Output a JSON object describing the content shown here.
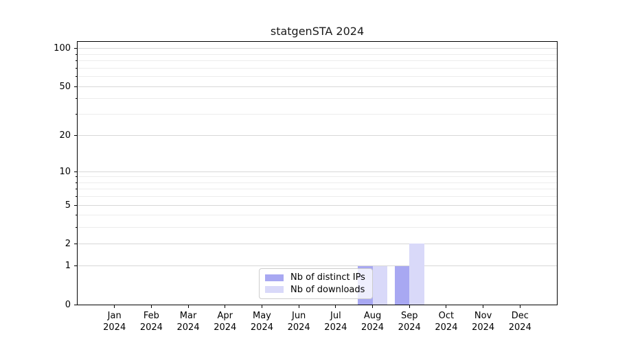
{
  "title": "statgenSTA 2024",
  "chart_data": {
    "type": "bar",
    "title": "statgenSTA 2024",
    "categories": [
      "Jan",
      "Feb",
      "Mar",
      "Apr",
      "May",
      "Jun",
      "Jul",
      "Aug",
      "Sep",
      "Oct",
      "Nov",
      "Dec"
    ],
    "year_label": "2024",
    "series": [
      {
        "name": "Nb of distinct IPs",
        "color": "#a8a8f2",
        "values": [
          0,
          0,
          0,
          0,
          0,
          0,
          0,
          1,
          1,
          0,
          0,
          0
        ]
      },
      {
        "name": "Nb of downloads",
        "color": "#d9d9f9",
        "values": [
          0,
          0,
          0,
          0,
          0,
          0,
          0,
          1,
          2,
          0,
          0,
          0
        ]
      }
    ],
    "yscale": "log1p",
    "ylim": [
      0,
      113
    ],
    "y_major_ticks": [
      0,
      1,
      2,
      5,
      10,
      20,
      50,
      100
    ],
    "y_minor_ticks": [
      3,
      4,
      6,
      7,
      8,
      9,
      30,
      40,
      60,
      70,
      80,
      90
    ],
    "grid": "horizontal",
    "legend_position": "lower-center-inside"
  },
  "colors": {
    "grid_major": "#d7d7d7",
    "grid_minor": "#ececec",
    "axis": "#000000",
    "legend_border": "#cccccc"
  }
}
